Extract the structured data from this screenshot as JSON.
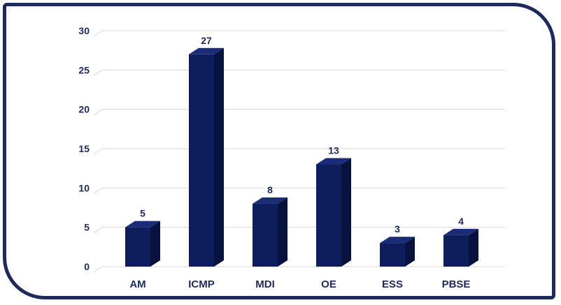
{
  "chart_data": {
    "type": "bar",
    "categories": [
      "AM",
      "ICMP",
      "MDI",
      "OE",
      "ESS",
      "PBSE"
    ],
    "values": [
      5,
      27,
      8,
      13,
      3,
      4
    ],
    "title": "",
    "xlabel": "",
    "ylabel": "",
    "ylim": [
      0,
      30
    ],
    "yticks": [
      0,
      5,
      10,
      15,
      20,
      25,
      30
    ],
    "grid": true,
    "data_labels": true,
    "style": "3d-column",
    "colors": {
      "bar_front": "#0e1d5c",
      "bar_side": "#08123f",
      "bar_top": "#1a2b78",
      "text": "#1f2a5c",
      "grid": "#d9d9d9",
      "frame": "#1f2a5c"
    }
  }
}
